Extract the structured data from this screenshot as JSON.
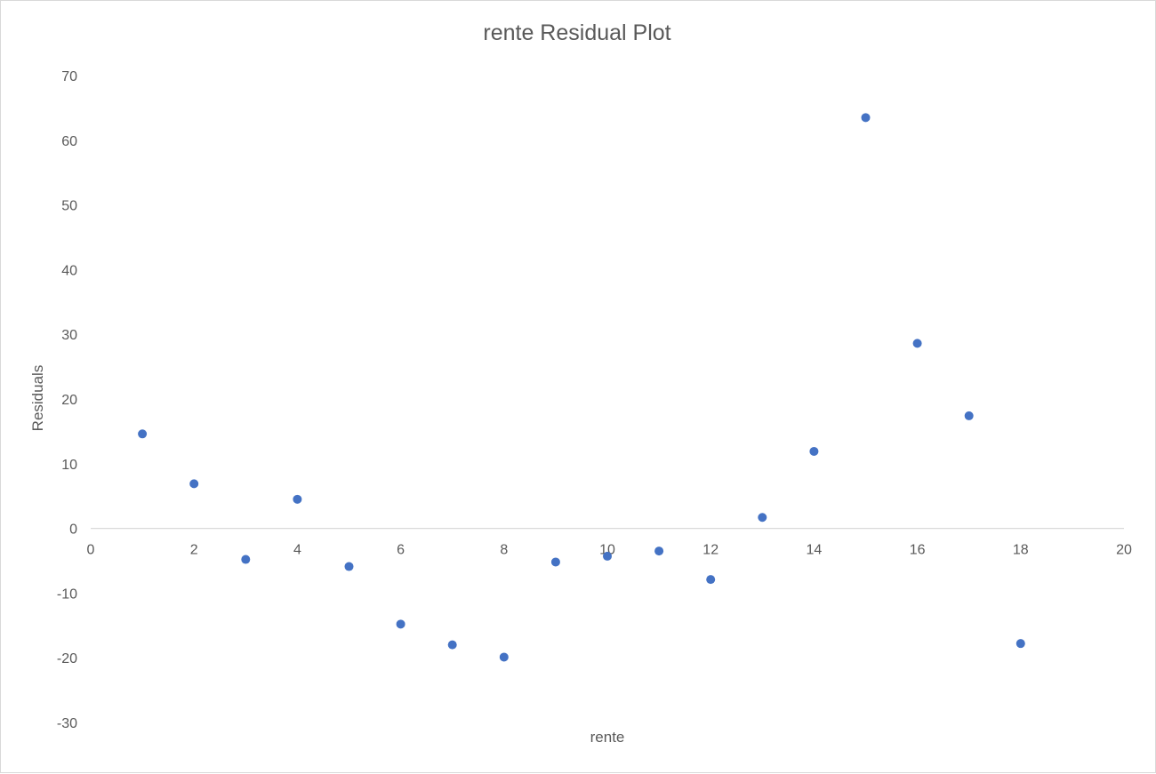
{
  "chart_data": {
    "type": "scatter",
    "title": "rente  Residual Plot",
    "xlabel": "rente",
    "ylabel": "Residuals",
    "xlim": [
      0,
      20
    ],
    "ylim": [
      -30,
      70
    ],
    "xticks": [
      0,
      2,
      4,
      6,
      8,
      10,
      12,
      14,
      16,
      18,
      20
    ],
    "yticks": [
      -30,
      -20,
      -10,
      0,
      10,
      20,
      30,
      40,
      50,
      60,
      70
    ],
    "grid": false,
    "legend": "none",
    "colors": {
      "point": "#4472c4",
      "text": "#595959",
      "axis": "#d9d9d9"
    },
    "series": [
      {
        "x": [
          1,
          2,
          3,
          4,
          5,
          6,
          7,
          8,
          9,
          10,
          11,
          12,
          13,
          14,
          15,
          16,
          17,
          18
        ],
        "y": [
          14.6,
          6.9,
          -4.8,
          4.5,
          -5.9,
          -14.8,
          -18.0,
          -19.9,
          -5.2,
          -4.3,
          -3.5,
          -7.9,
          1.7,
          11.9,
          63.5,
          28.6,
          17.4,
          -17.8
        ]
      }
    ]
  }
}
